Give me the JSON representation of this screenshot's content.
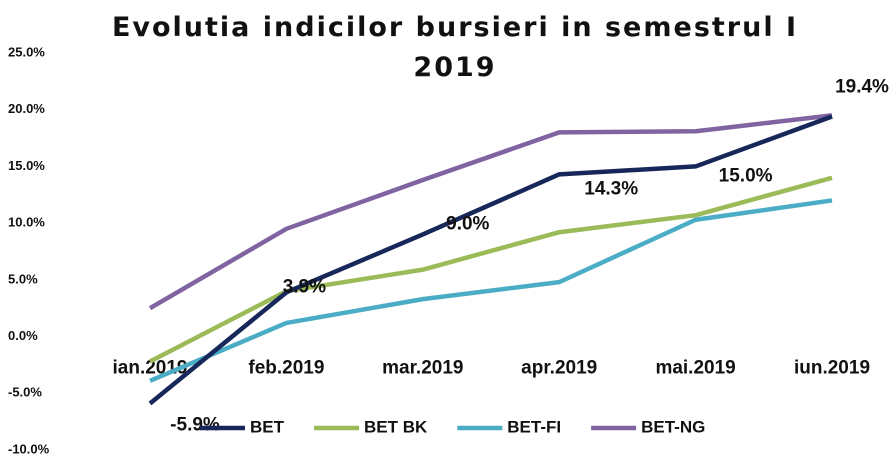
{
  "chart_data": {
    "type": "line",
    "title": "Evolutia indicilor bursieri in semestrul I 2019",
    "categories": [
      "ian.2019",
      "feb.2019",
      "mar.2019",
      "apr.2019",
      "mai.2019",
      "iun.2019"
    ],
    "series": [
      {
        "name": "BET",
        "color": "#17275a",
        "values": [
          -5.9,
          3.9,
          9.0,
          14.3,
          15.0,
          19.4
        ],
        "value_labels": [
          "-5.9%",
          "3.9%",
          "9.0%",
          "14.3%",
          "15.0%",
          "19.4%"
        ]
      },
      {
        "name": "BET BK",
        "color": "#9bbb59",
        "values": [
          -2.2,
          4.0,
          5.9,
          9.2,
          10.7,
          14.0
        ]
      },
      {
        "name": "BET-FI",
        "color": "#4bacc6",
        "values": [
          -3.9,
          1.2,
          3.3,
          4.8,
          10.3,
          12.0
        ]
      },
      {
        "name": "BET-NG",
        "color": "#8064a2",
        "values": [
          2.5,
          9.5,
          13.8,
          18.0,
          18.1,
          19.5
        ]
      }
    ],
    "ylim": [
      -10,
      25
    ],
    "yticks": [
      {
        "value": -10,
        "label": "-10.0%"
      },
      {
        "value": -5,
        "label": "-5.0%"
      },
      {
        "value": 0,
        "label": "0.0%"
      },
      {
        "value": 5,
        "label": "5.0%"
      },
      {
        "value": 10,
        "label": "10.0%"
      },
      {
        "value": 15,
        "label": "15.0%"
      },
      {
        "value": 20,
        "label": "20.0%"
      },
      {
        "value": 25,
        "label": "25.0%"
      }
    ],
    "grid": false,
    "legend": "bottom"
  }
}
